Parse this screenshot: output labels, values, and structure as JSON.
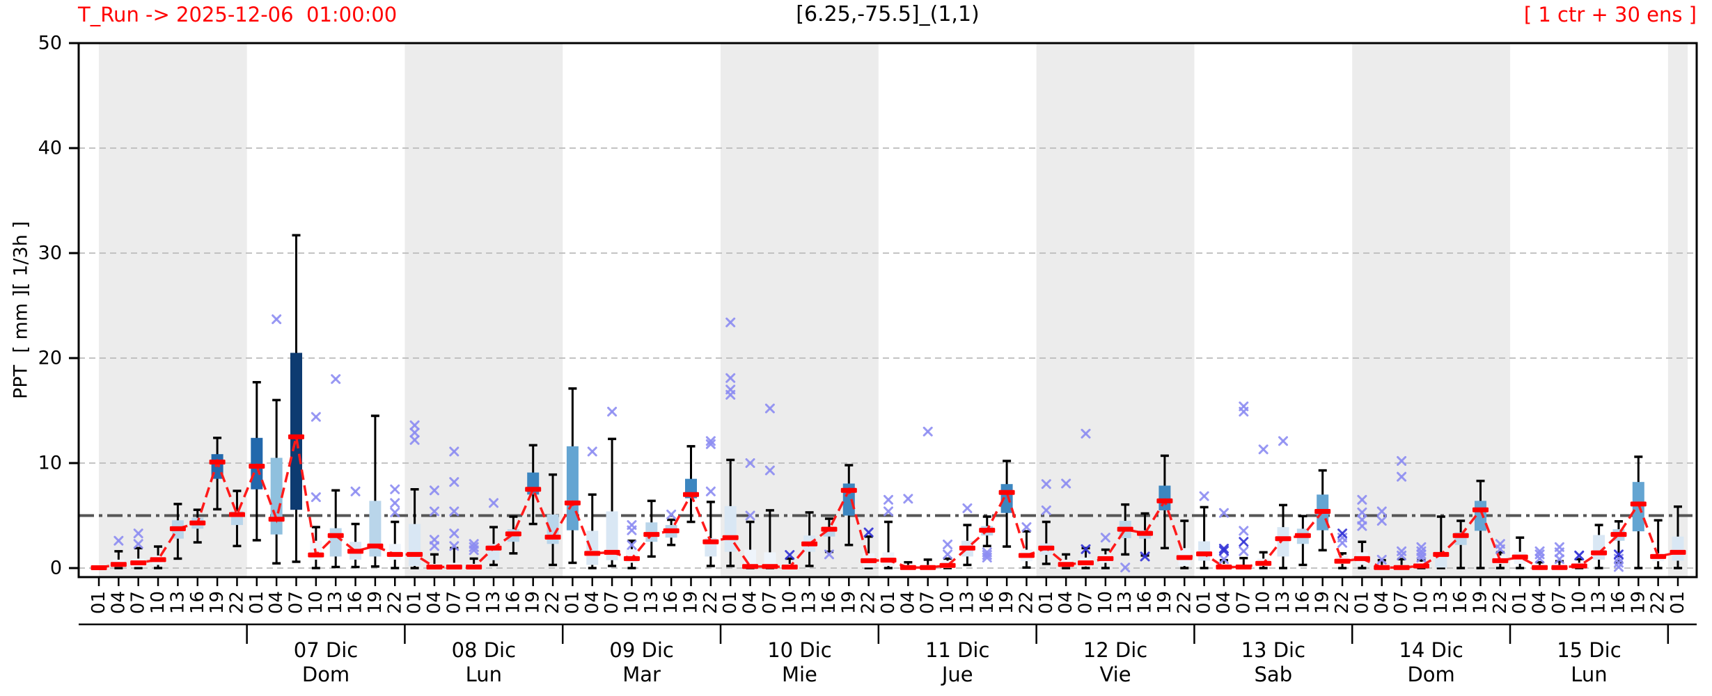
{
  "header": {
    "title_left": "T_Run -> 2025-12-06  01:00:00",
    "title_center": "[6.25,-75.5]_(1,1)",
    "title_right": "[ 1 ctr + 30 ens ]"
  },
  "chart_data": {
    "type": "boxplot",
    "title": "[6.25,-75.5]_(1,1)",
    "subtitle_left": "T_Run -> 2025-12-06  01:00:00",
    "subtitle_right": "[ 1 ctr + 30 ens ]",
    "ylabel": "PPT  [ mm ][ 1/3h ]",
    "xlabel": "",
    "ylim": [
      -1,
      50.3
    ],
    "yticks": [
      0,
      10,
      20,
      30,
      40,
      50
    ],
    "threshold_line": 5,
    "grid": "dashed horizontal at yticks",
    "legend": "none",
    "hours": [
      "01",
      "04",
      "07",
      "10",
      "13",
      "16",
      "19",
      "22",
      "01",
      "04",
      "07",
      "10",
      "13",
      "16",
      "19",
      "22",
      "01",
      "04",
      "07",
      "10",
      "13",
      "16",
      "19",
      "22",
      "01",
      "04",
      "07",
      "10",
      "13",
      "16",
      "19",
      "22",
      "01",
      "04",
      "07",
      "10",
      "13",
      "16",
      "19",
      "22",
      "01",
      "04",
      "07",
      "10",
      "13",
      "16",
      "19",
      "22",
      "01",
      "04",
      "07",
      "10",
      "13",
      "16",
      "19",
      "22",
      "01",
      "04",
      "07",
      "10",
      "13",
      "16",
      "19",
      "22",
      "01",
      "04",
      "07",
      "10",
      "13",
      "16",
      "19",
      "22",
      "01",
      "04",
      "07",
      "10",
      "13",
      "16",
      "19",
      "22",
      "01"
    ],
    "days": [
      {
        "label": "",
        "weekday": "",
        "first": 0,
        "last": 7,
        "shaded": true
      },
      {
        "label": "07 Dic",
        "weekday": "Dom",
        "first": 8,
        "last": 15,
        "shaded": false
      },
      {
        "label": "08 Dic",
        "weekday": "Lun",
        "first": 16,
        "last": 23,
        "shaded": true
      },
      {
        "label": "09 Dic",
        "weekday": "Mar",
        "first": 24,
        "last": 31,
        "shaded": false
      },
      {
        "label": "10 Dic",
        "weekday": "Mie",
        "first": 32,
        "last": 39,
        "shaded": true
      },
      {
        "label": "11 Dic",
        "weekday": "Jue",
        "first": 40,
        "last": 47,
        "shaded": false
      },
      {
        "label": "12 Dic",
        "weekday": "Vie",
        "first": 48,
        "last": 55,
        "shaded": true
      },
      {
        "label": "13 Dic",
        "weekday": "Sab",
        "first": 56,
        "last": 63,
        "shaded": false
      },
      {
        "label": "14 Dic",
        "weekday": "Dom",
        "first": 64,
        "last": 71,
        "shaded": true
      },
      {
        "label": "15 Dic",
        "weekday": "Lun",
        "first": 72,
        "last": 79,
        "shaded": false
      },
      {
        "label": "",
        "weekday": "",
        "first": 80,
        "last": 80,
        "shaded": true
      }
    ],
    "box_format": [
      "whisker_low",
      "q1",
      "median",
      "q3",
      "whisker_high",
      "shade"
    ],
    "boxes": [
      [
        0,
        0,
        0.03,
        0.08,
        0.15,
        "w"
      ],
      [
        0,
        0.1,
        0.35,
        0.8,
        1.6,
        "w"
      ],
      [
        0,
        0.1,
        0.5,
        0.9,
        1.9,
        "w"
      ],
      [
        0,
        0.3,
        0.8,
        1.2,
        2.05,
        "w"
      ],
      [
        0.9,
        2.8,
        3.75,
        4.55,
        6.1,
        "l"
      ],
      [
        2.45,
        3.75,
        4.3,
        4.8,
        5.55,
        "l"
      ],
      [
        5.6,
        8.5,
        10.1,
        10.85,
        12.4,
        "d"
      ],
      [
        2.1,
        4.1,
        5.1,
        5.4,
        7.35,
        "l"
      ],
      [
        2.65,
        7.5,
        9.7,
        12.4,
        17.7,
        "d"
      ],
      [
        0.45,
        3.2,
        4.65,
        10.5,
        16.0,
        "m"
      ],
      [
        0.6,
        5.55,
        12.5,
        20.5,
        31.7,
        "n"
      ],
      [
        0,
        0.8,
        1.25,
        2.6,
        3.9,
        "w"
      ],
      [
        0.1,
        1.1,
        3.1,
        3.8,
        7.4,
        "l"
      ],
      [
        0.1,
        0.8,
        1.6,
        2.5,
        4.2,
        "p"
      ],
      [
        0.15,
        1.1,
        2.1,
        6.4,
        14.5,
        "l"
      ],
      [
        0,
        0.8,
        1.3,
        2.3,
        4.4,
        "w"
      ],
      [
        0,
        0.2,
        1.3,
        4.2,
        7.5,
        "p"
      ],
      [
        0,
        0,
        0.1,
        0.4,
        1.3,
        "w"
      ],
      [
        0,
        0,
        0.1,
        0.5,
        1.9,
        "w"
      ],
      [
        0,
        0,
        0.1,
        0.4,
        0.9,
        "w"
      ],
      [
        0.3,
        0.75,
        1.9,
        2.3,
        3.9,
        "p"
      ],
      [
        1.4,
        2.5,
        3.25,
        3.7,
        4.9,
        "l"
      ],
      [
        4.2,
        7.0,
        7.5,
        9.1,
        11.7,
        "b"
      ],
      [
        0.3,
        2.3,
        2.95,
        5.1,
        8.9,
        "l"
      ],
      [
        0.5,
        3.6,
        6.2,
        11.6,
        17.1,
        "s"
      ],
      [
        0,
        0.3,
        1.4,
        3.55,
        7.0,
        "p"
      ],
      [
        0.2,
        0.75,
        1.5,
        5.4,
        12.3,
        "p"
      ],
      [
        0,
        0.5,
        0.9,
        1.8,
        2.6,
        "w"
      ],
      [
        1.1,
        2.5,
        3.2,
        4.35,
        6.4,
        "l"
      ],
      [
        2.2,
        2.9,
        3.55,
        4.1,
        4.6,
        "l"
      ],
      [
        4.4,
        6.65,
        7.0,
        8.5,
        11.6,
        "b"
      ],
      [
        0.2,
        1.1,
        2.5,
        2.85,
        6.3,
        "p"
      ],
      [
        0.2,
        1.55,
        2.9,
        5.9,
        10.3,
        "p"
      ],
      [
        0,
        0,
        0.15,
        1.75,
        4.4,
        "w"
      ],
      [
        0,
        0,
        0.15,
        1.5,
        5.5,
        "w"
      ],
      [
        0,
        0,
        0.1,
        0.4,
        0.9,
        "w"
      ],
      [
        0.2,
        1.55,
        2.3,
        3.1,
        5.3,
        "p"
      ],
      [
        1.55,
        3.0,
        3.7,
        3.9,
        4.7,
        "l"
      ],
      [
        2.2,
        5.0,
        7.4,
        8.05,
        9.8,
        "b"
      ],
      [
        0,
        0.05,
        0.7,
        1.4,
        3.0,
        "w"
      ],
      [
        0,
        0.2,
        0.75,
        1.5,
        4.4,
        "w"
      ],
      [
        0,
        0,
        0.05,
        0.3,
        0.55,
        "w"
      ],
      [
        0,
        0,
        0.05,
        0.3,
        0.8,
        "w"
      ],
      [
        0,
        0,
        0.25,
        0.7,
        0.9,
        "w"
      ],
      [
        0.3,
        1.1,
        1.9,
        2.6,
        4.1,
        "p"
      ],
      [
        2.1,
        3.1,
        3.6,
        4.0,
        4.9,
        "l"
      ],
      [
        2.05,
        5.25,
        7.2,
        8.0,
        10.2,
        "b"
      ],
      [
        0.05,
        0.65,
        1.2,
        1.75,
        3.5,
        "w"
      ],
      [
        0.4,
        1.25,
        1.9,
        2.35,
        4.4,
        "p"
      ],
      [
        0,
        0.1,
        0.35,
        0.8,
        1.3,
        "w"
      ],
      [
        0,
        0.15,
        0.5,
        1.0,
        1.9,
        "w"
      ],
      [
        0,
        0.5,
        0.9,
        1.3,
        1.75,
        "w"
      ],
      [
        1.3,
        2.85,
        3.7,
        4.5,
        6.05,
        "l"
      ],
      [
        1.2,
        2.8,
        3.3,
        3.6,
        5.2,
        "l"
      ],
      [
        1.9,
        5.5,
        6.4,
        7.85,
        10.7,
        "b"
      ],
      [
        0,
        0.2,
        1.0,
        1.9,
        4.5,
        "w"
      ],
      [
        0,
        0.7,
        1.35,
        2.55,
        5.8,
        "p"
      ],
      [
        0,
        0,
        0.1,
        0.4,
        0.75,
        "w"
      ],
      [
        0,
        0,
        0.1,
        0.3,
        0.95,
        "w"
      ],
      [
        0,
        0.2,
        0.45,
        0.9,
        1.5,
        "w"
      ],
      [
        0,
        1.1,
        2.8,
        3.9,
        6.0,
        "p"
      ],
      [
        0.3,
        2.3,
        3.1,
        3.75,
        4.95,
        "l"
      ],
      [
        1.7,
        3.6,
        5.4,
        7.0,
        9.3,
        "s"
      ],
      [
        0,
        0.4,
        0.65,
        1.2,
        1.4,
        "w"
      ],
      [
        0,
        0.3,
        0.9,
        1.5,
        2.5,
        "w"
      ],
      [
        0,
        0,
        0.05,
        0.3,
        0.75,
        "w"
      ],
      [
        0,
        0,
        0.05,
        0.3,
        0.85,
        "w"
      ],
      [
        0,
        0,
        0.2,
        0.6,
        0.75,
        "w"
      ],
      [
        0,
        0.05,
        1.3,
        1.5,
        4.9,
        "p"
      ],
      [
        0,
        2.2,
        3.1,
        3.4,
        4.5,
        "l"
      ],
      [
        0,
        3.55,
        5.55,
        6.4,
        8.3,
        "s"
      ],
      [
        0,
        0.4,
        0.7,
        1.2,
        1.5,
        "w"
      ],
      [
        0,
        0.4,
        1.05,
        1.55,
        2.9,
        "w"
      ],
      [
        0,
        0,
        0.05,
        0.3,
        0.55,
        "w"
      ],
      [
        0,
        0,
        0.05,
        0.3,
        0.65,
        "w"
      ],
      [
        0,
        0,
        0.2,
        0.5,
        0.85,
        "w"
      ],
      [
        0,
        0.8,
        1.45,
        3.15,
        4.1,
        "p"
      ],
      [
        0.55,
        2.6,
        3.2,
        3.7,
        4.45,
        "l"
      ],
      [
        0,
        3.5,
        6.1,
        8.2,
        10.6,
        "s"
      ],
      [
        0,
        0.65,
        1.1,
        1.4,
        4.55,
        "w"
      ],
      [
        0,
        0.7,
        1.5,
        3.0,
        5.85,
        "p"
      ]
    ],
    "fliers": {
      "1": [
        2.6
      ],
      "2": [
        3.3,
        2.3
      ],
      "9": [
        23.7
      ],
      "11": [
        14.4,
        6.75
      ],
      "12": [
        18.0
      ],
      "13": [
        7.3
      ],
      "15": [
        7.5,
        6.2,
        5.3
      ],
      "16": [
        13.6,
        12.9,
        12.2
      ],
      "17": [
        7.4,
        5.4,
        2.7,
        2.1
      ],
      "18": [
        11.1,
        8.2,
        5.4,
        3.3,
        2.1
      ],
      "19": [
        2.3,
        2.0,
        1.7
      ],
      "20": [
        6.2
      ],
      "25": [
        11.1
      ],
      "26": [
        14.9
      ],
      "27": [
        4.1,
        3.6,
        2.2
      ],
      "29": [
        5.1
      ],
      "31": [
        12.1,
        11.8,
        7.3
      ],
      "32": [
        23.4,
        18.1,
        17.0,
        16.5
      ],
      "33": [
        10.0,
        5.0
      ],
      "34": [
        15.2,
        9.3
      ],
      "37": [
        1.3
      ],
      "40": [
        6.5,
        5.4
      ],
      "41": [
        6.6
      ],
      "42": [
        13.0
      ],
      "43": [
        2.25,
        1.3
      ],
      "44": [
        5.7
      ],
      "45": [
        1.5,
        1.25,
        1.0
      ],
      "47": [
        3.9
      ],
      "48": [
        8.0,
        5.5
      ],
      "49": [
        8.05
      ],
      "50": [
        12.8
      ],
      "51": [
        2.9
      ],
      "52": [
        0.05
      ],
      "56": [
        6.85
      ],
      "57": [
        5.25,
        0.85
      ],
      "58": [
        15.4,
        14.9,
        3.55,
        1.6
      ],
      "59": [
        11.3
      ],
      "60": [
        12.1
      ],
      "63": [
        2.9,
        2.4
      ],
      "64": [
        6.5,
        5.3,
        4.6,
        4.0
      ],
      "65": [
        5.4,
        4.5,
        0.8
      ],
      "66": [
        10.2,
        8.7,
        1.6,
        1.2
      ],
      "67": [
        2.0,
        1.6,
        1.3,
        1.0
      ],
      "71": [
        2.3,
        1.8
      ],
      "73": [
        1.6,
        1.3,
        0.9
      ],
      "74": [
        2.0,
        1.5,
        0.85
      ],
      "75": [
        1.2
      ],
      "77": [
        0.9,
        0.5,
        0.1
      ]
    },
    "dark_fliers": {
      "35": [
        1.25
      ],
      "39": [
        3.4
      ],
      "50": [
        1.8
      ],
      "53": [
        1.1
      ],
      "57": [
        1.85,
        1.65
      ],
      "58": [
        2.5
      ],
      "63": [
        3.3
      ],
      "75": [
        1.2
      ],
      "77": [
        1.3
      ]
    },
    "colors": {
      "band": "#ececec",
      "grid": "#bbbbbb",
      "threshold": "#555555",
      "median_line": "#ff1a1a",
      "median_mark": "#ff0000",
      "whisker": "#000000",
      "flier": "#8d8df2",
      "flier_dark": "#3434d6",
      "title_accent": "#ff0000",
      "shades": {
        "w": "#eef4fb",
        "p": "#d9e7f4",
        "l": "#b9d5ea",
        "m": "#8fc0de",
        "s": "#64a5d2",
        "b": "#3c86c0",
        "d": "#2268ac",
        "n": "#0d3b71"
      }
    }
  }
}
